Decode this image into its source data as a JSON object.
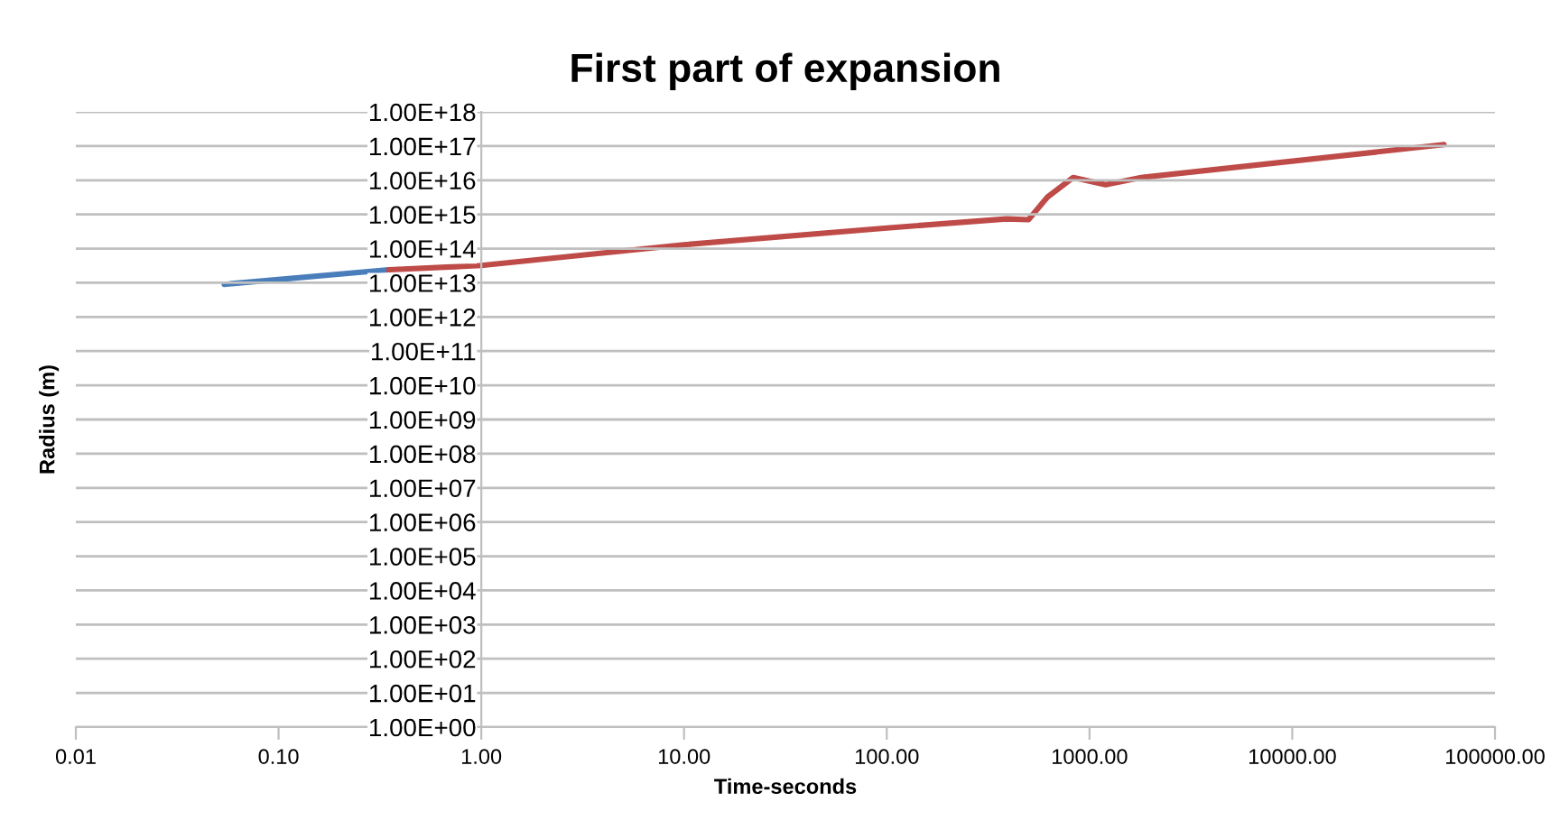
{
  "chart_data": {
    "type": "line",
    "title": "First part of expansion",
    "xlabel": "Time-seconds",
    "ylabel": "Radius (m)",
    "log": "xy",
    "grid": "y",
    "legend": false,
    "marker": "none",
    "line_style": "solid",
    "xlim": [
      0.01,
      100000
    ],
    "ylim": [
      1,
      1e+18
    ],
    "xticks": [
      {
        "value": 0.01,
        "label": "0.01"
      },
      {
        "value": 0.1,
        "label": "0.10"
      },
      {
        "value": 1,
        "label": "1.00"
      },
      {
        "value": 10,
        "label": "10.00"
      },
      {
        "value": 100,
        "label": "100.00"
      },
      {
        "value": 1000,
        "label": "1000.00"
      },
      {
        "value": 10000,
        "label": "10000.00"
      },
      {
        "value": 100000,
        "label": "100000.00"
      }
    ],
    "yticks": [
      {
        "value": 1,
        "label": "1.00E+00"
      },
      {
        "value": 10,
        "label": "1.00E+01"
      },
      {
        "value": 100,
        "label": "1.00E+02"
      },
      {
        "value": 1000,
        "label": "1.00E+03"
      },
      {
        "value": 10000,
        "label": "1.00E+04"
      },
      {
        "value": 100000,
        "label": "1.00E+05"
      },
      {
        "value": 1000000.0,
        "label": "1.00E+06"
      },
      {
        "value": 10000000.0,
        "label": "1.00E+07"
      },
      {
        "value": 100000000.0,
        "label": "1.00E+08"
      },
      {
        "value": 1000000000.0,
        "label": "1.00E+09"
      },
      {
        "value": 10000000000.0,
        "label": "1.00E+10"
      },
      {
        "value": 100000000000.0,
        "label": "1.00E+11"
      },
      {
        "value": 1000000000000.0,
        "label": "1.00E+12"
      },
      {
        "value": 10000000000000.0,
        "label": "1.00E+13"
      },
      {
        "value": 100000000000000.0,
        "label": "1.00E+14"
      },
      {
        "value": 1000000000000000.0,
        "label": "1.00E+15"
      },
      {
        "value": 1e+16,
        "label": "1.00E+16"
      },
      {
        "value": 1e+17,
        "label": "1.00E+17"
      },
      {
        "value": 1e+18,
        "label": "1.00E+18"
      }
    ],
    "series": [
      {
        "color": "#4a7ebb",
        "x": [
          0.054,
          0.35
        ],
        "values": [
          9000000000000.0,
          24000000000000.0
        ]
      },
      {
        "color": "#be4b48",
        "x": [
          0.35,
          1,
          10,
          100,
          390,
          500,
          620,
          830,
          1200,
          1800,
          56000
        ],
        "values": [
          24000000000000.0,
          32000000000000.0,
          130000000000000.0,
          400000000000000.0,
          740000000000000.0,
          700000000000000.0,
          3200000000000000.0,
          1.2e+16,
          7400000000000000.0,
          1.2e+16,
          1.1e+17
        ]
      }
    ]
  }
}
